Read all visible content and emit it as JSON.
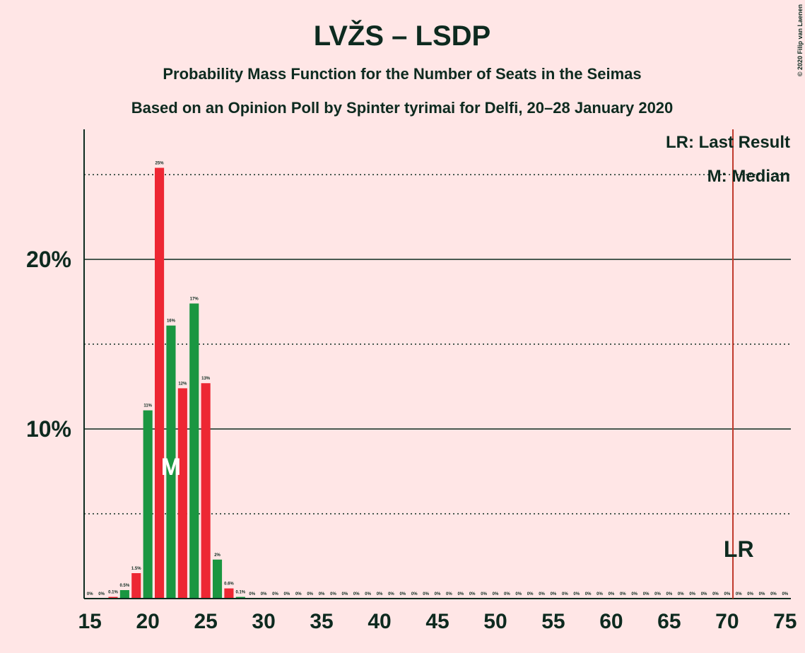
{
  "chart_data": {
    "type": "bar",
    "title": "LVŽS – LSDP",
    "subtitle": "Probability Mass Function for the Number of Seats in the Seimas",
    "subtitle2": "Based on an Opinion Poll by Spinter tyrimai for Delfi, 20–28 January 2020",
    "copyright": "© 2020 Filip van Laenen",
    "x": [
      15,
      16,
      17,
      18,
      19,
      20,
      21,
      22,
      23,
      24,
      25,
      26,
      27,
      28,
      29,
      30,
      31,
      32,
      33,
      34,
      35,
      36,
      37,
      38,
      39,
      40,
      41,
      42,
      43,
      44,
      45,
      46,
      47,
      48,
      49,
      50,
      51,
      52,
      53,
      54,
      55,
      56,
      57,
      58,
      59,
      60,
      61,
      62,
      63,
      64,
      65,
      66,
      67,
      68,
      69,
      70,
      71,
      72,
      73,
      74,
      75
    ],
    "values": [
      0,
      0,
      0.1,
      0.5,
      1.5,
      11.1,
      25.4,
      16.1,
      12.4,
      17.4,
      12.7,
      2.3,
      0.6,
      0.1,
      0,
      0,
      0,
      0,
      0,
      0,
      0,
      0,
      0,
      0,
      0,
      0,
      0,
      0,
      0,
      0,
      0,
      0,
      0,
      0,
      0,
      0,
      0,
      0,
      0,
      0,
      0,
      0,
      0,
      0,
      0,
      0,
      0,
      0,
      0,
      0,
      0,
      0,
      0,
      0,
      0,
      0,
      0,
      0,
      0,
      0,
      0
    ],
    "value_labels": [
      "0%",
      "0%",
      "0.1%",
      "0.5%",
      "1.5%",
      "11%",
      "25%",
      "16%",
      "12%",
      "17%",
      "13%",
      "2%",
      "0.6%",
      "0.1%",
      "0%",
      "0%",
      "0%",
      "0%",
      "0%",
      "0%",
      "0%",
      "0%",
      "0%",
      "0%",
      "0%",
      "0%",
      "0%",
      "0%",
      "0%",
      "0%",
      "0%",
      "0%",
      "0%",
      "0%",
      "0%",
      "0%",
      "0%",
      "0%",
      "0%",
      "0%",
      "0%",
      "0%",
      "0%",
      "0%",
      "0%",
      "0%",
      "0%",
      "0%",
      "0%",
      "0%",
      "0%",
      "0%",
      "0%",
      "0%",
      "0%",
      "0%",
      "0%",
      "0%",
      "0%",
      "0%",
      "0%"
    ],
    "colors": [
      "#ed2733",
      "#1a9641",
      "#ed2733",
      "#1a9641",
      "#ed2733",
      "#1a9641",
      "#ed2733",
      "#1a9641",
      "#ed2733",
      "#1a9641",
      "#ed2733",
      "#1a9641",
      "#ed2733",
      "#1a9641",
      "#ed2733",
      "#1a9641",
      "#ed2733",
      "#1a9641",
      "#ed2733",
      "#1a9641",
      "#ed2733",
      "#1a9641",
      "#ed2733",
      "#1a9641",
      "#ed2733",
      "#1a9641",
      "#ed2733",
      "#1a9641",
      "#ed2733",
      "#1a9641",
      "#ed2733",
      "#1a9641",
      "#ed2733",
      "#1a9641",
      "#ed2733",
      "#1a9641",
      "#ed2733",
      "#1a9641",
      "#ed2733",
      "#1a9641",
      "#ed2733",
      "#1a9641",
      "#ed2733",
      "#1a9641",
      "#ed2733",
      "#1a9641",
      "#ed2733",
      "#1a9641",
      "#ed2733",
      "#1a9641",
      "#ed2733",
      "#1a9641",
      "#ed2733",
      "#1a9641",
      "#ed2733",
      "#1a9641",
      "#ed2733",
      "#1a9641",
      "#ed2733",
      "#1a9641",
      "#ed2733"
    ],
    "xlim": [
      14.5,
      75.5
    ],
    "xticks": [
      15,
      20,
      25,
      30,
      35,
      40,
      45,
      50,
      55,
      60,
      65,
      70,
      75
    ],
    "ylim": [
      0,
      27.67
    ],
    "yticks": [
      {
        "value": 10,
        "label": "10%"
      },
      {
        "value": 20,
        "label": "20%"
      }
    ],
    "minor_yticks": [
      5,
      15,
      25
    ],
    "median": 22,
    "median_label": "M",
    "last_result": 71,
    "last_result_label": "LR",
    "legend": [
      "LR: Last Result",
      "M: Median"
    ]
  }
}
